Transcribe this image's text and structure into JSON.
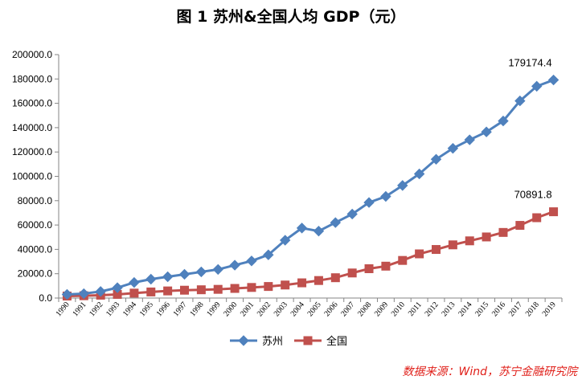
{
  "title": "图 1   苏州&全国人均 GDP（元）",
  "source": "数据来源：Wind，苏宁金融研究院",
  "colors": {
    "suzhou": "#4f81bd",
    "national": "#c0504d"
  },
  "chart_data": {
    "type": "line",
    "title": "图 1   苏州&全国人均 GDP（元）",
    "xlabel": "",
    "ylabel": "",
    "ylim": [
      0,
      200000
    ],
    "y_ticks": [
      "0.0",
      "20000.0",
      "40000.0",
      "60000.0",
      "80000.0",
      "100000.0",
      "120000.0",
      "140000.0",
      "160000.0",
      "180000.0",
      "200000.0"
    ],
    "grid": false,
    "legend": "bottom",
    "categories": [
      "1990",
      "1991",
      "1992",
      "1993",
      "1994",
      "1995",
      "1996",
      "1997",
      "1998",
      "1999",
      "2000",
      "2001",
      "2002",
      "2003",
      "2004",
      "2005",
      "2006",
      "2007",
      "2008",
      "2009",
      "2010",
      "2011",
      "2012",
      "2013",
      "2014",
      "2015",
      "2016",
      "2017",
      "2018",
      "2019"
    ],
    "series": [
      {
        "name": "苏州",
        "marker": "diamond",
        "values": [
          3000,
          3600,
          5400,
          8500,
          12800,
          15500,
          17500,
          19500,
          21500,
          23500,
          27000,
          30500,
          35500,
          47500,
          57500,
          55000,
          62000,
          69000,
          78500,
          83500,
          92500,
          102000,
          114000,
          123000,
          130000,
          136500,
          145500,
          162000,
          174000,
          179174.4
        ]
      },
      {
        "name": "全国",
        "marker": "square",
        "values": [
          1650,
          1900,
          2350,
          3000,
          4050,
          5000,
          5850,
          6450,
          6800,
          7150,
          7900,
          8700,
          9500,
          10700,
          12500,
          14400,
          16700,
          20600,
          24100,
          26200,
          30900,
          36300,
          39900,
          43700,
          47000,
          50200,
          53900,
          59700,
          66000,
          70891.8
        ]
      }
    ],
    "annotations": [
      {
        "series": "苏州",
        "text": "179174.4"
      },
      {
        "series": "全国",
        "text": "70891.8"
      }
    ]
  }
}
